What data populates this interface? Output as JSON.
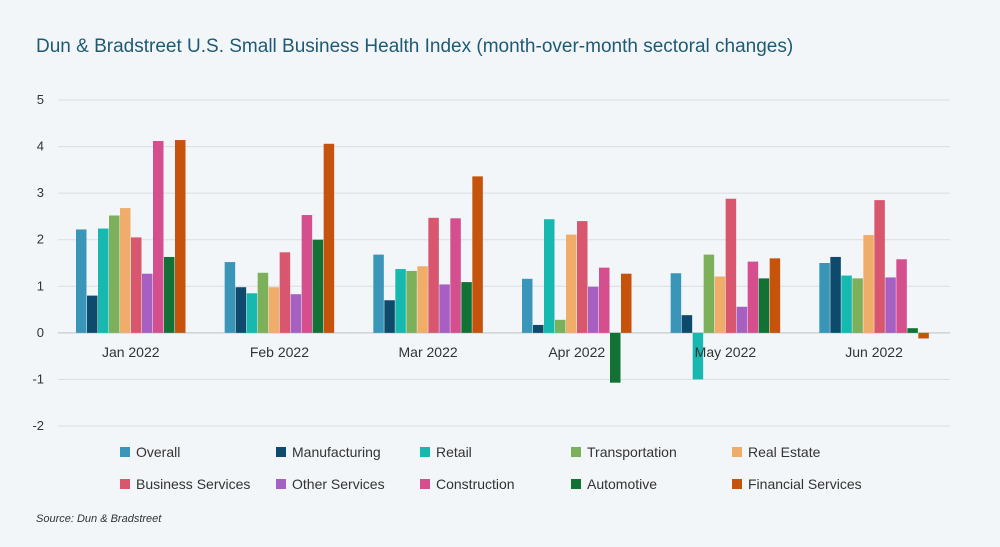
{
  "title": "Dun & Bradstreet U.S. Small Business Health Index (month-over-month sectoral changes)",
  "source": "Source: Dun & Bradstreet",
  "chart_data": {
    "type": "bar",
    "title": "Dun & Bradstreet U.S. Small Business Health Index (month-over-month sectoral changes)",
    "xlabel": "",
    "ylabel": "",
    "ylim": [
      -2,
      5
    ],
    "yticks": [
      5,
      4,
      3,
      2,
      1,
      0,
      -1,
      -2
    ],
    "grid": true,
    "legend_position": "bottom",
    "categories": [
      "Jan 2022",
      "Feb 2022",
      "Mar 2022",
      "Apr 2022",
      "May 2022",
      "Jun 2022"
    ],
    "series": [
      {
        "name": "Overall",
        "color": "#3a96b9",
        "values": [
          2.22,
          1.52,
          1.68,
          1.16,
          1.28,
          1.5
        ]
      },
      {
        "name": "Manufacturing",
        "color": "#0e4a6b",
        "values": [
          0.8,
          0.98,
          0.7,
          0.17,
          0.38,
          1.63
        ]
      },
      {
        "name": "Retail",
        "color": "#16b8b0",
        "values": [
          2.24,
          0.85,
          1.37,
          2.44,
          -1.0,
          1.23
        ]
      },
      {
        "name": "Transportation",
        "color": "#7db05a",
        "values": [
          2.52,
          1.29,
          1.33,
          0.28,
          1.68,
          1.17
        ]
      },
      {
        "name": "Real Estate",
        "color": "#f0ad6a",
        "values": [
          2.68,
          0.98,
          1.43,
          2.11,
          1.21,
          2.1
        ]
      },
      {
        "name": "Business Services",
        "color": "#d9576e",
        "values": [
          2.05,
          1.73,
          2.47,
          2.4,
          2.88,
          2.85
        ]
      },
      {
        "name": "Other Services",
        "color": "#a560c2",
        "values": [
          1.27,
          0.83,
          1.04,
          0.99,
          0.56,
          1.19
        ]
      },
      {
        "name": "Construction",
        "color": "#d54f8e",
        "values": [
          4.12,
          2.53,
          2.46,
          1.4,
          1.53,
          1.58
        ]
      },
      {
        "name": "Automotive",
        "color": "#127236",
        "values": [
          1.63,
          2.0,
          1.09,
          -1.07,
          1.17,
          0.1
        ]
      },
      {
        "name": "Financial Services",
        "color": "#c5530c",
        "values": [
          4.14,
          4.06,
          3.36,
          1.27,
          1.6,
          -0.12
        ]
      }
    ]
  }
}
